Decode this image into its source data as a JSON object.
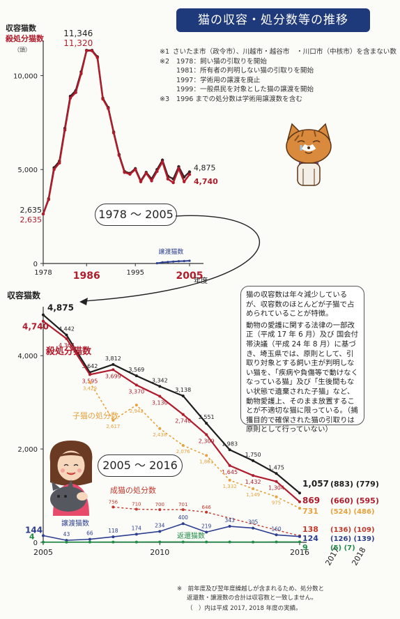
{
  "title": "猫の収容・処分数等の推移",
  "notes": [
    {
      "mark": "※1",
      "text": "さいたま市（政令市）、川越市・越谷市　・川口市（中核市）を含まない数"
    },
    {
      "mark": "※2",
      "text": "1978：飼い猫の引取りを開始"
    },
    {
      "mark": "",
      "text": "1981：所有者の判明しない猫の引取りを開始"
    },
    {
      "mark": "",
      "text": "1997：学術用の譲渡を廃止"
    },
    {
      "mark": "",
      "text": "1999：一般県民を対象とした猫の譲渡を開始"
    },
    {
      "mark": "※3",
      "text": "1996 までの処分数は学術用譲渡数を含む"
    }
  ],
  "explain_box": {
    "p1": "猫の収容数は年々減少しているが、収容数のほとんどが子猫で占められていることが特徴。",
    "p2": "動物の愛護に関する法律の一部改正（平成 17 年 6 月）及び 国会付帯決議（平成 24 年 8 月）に基づき、埼玉県では、原則として、引取り対象とする飼い主が判明しない猫を、「疾病や負傷等で動けなくなっている猫」及び「生後間もない状態で遺棄された子猫」など、動物愛護上、そのまま放置することが不適切な猫に限っている。（捕獲目的で確保された猫の引取りは原則として行っていない）"
  },
  "footnote": {
    "line1": "※　前年度及び翌年度繰越しが含まれるため、処分数と",
    "line2": "返還数・譲渡数の合計は収容数と一致しません。",
    "line3": "（　）内は平成 2017, 2018 年度の実績。"
  },
  "colors": {
    "banner": "#1f3a7a",
    "intake": "#2a2a2a",
    "euthanized": "#b01c2c",
    "kitten": "#e6a23c",
    "adult": "#c0392b",
    "transfer": "#2c3e8f",
    "returned": "#1e8c45"
  },
  "chart_data": [
    {
      "type": "line",
      "range_label": "1978 ～ 2005",
      "ylabel_lines": [
        "収容猫数",
        "殺処分猫数"
      ],
      "yunit": "（頭）",
      "xlabel": "年度",
      "xlim": [
        1978,
        2005
      ],
      "ylim": [
        0,
        11500
      ],
      "yticks": [
        0,
        5000,
        10000
      ],
      "ytick_labels": [
        "0",
        "5,000",
        "10,000"
      ],
      "xticks": [
        1978,
        1986,
        1995,
        2005
      ],
      "highlight_xticks": [
        1986,
        2005
      ],
      "peak_labels": {
        "intake": "11,346",
        "euthanized": "11,320"
      },
      "start_labels": {
        "intake": "2,635",
        "euthanized": "2,635"
      },
      "end_labels": {
        "intake": "4,875",
        "euthanized": "4,740"
      },
      "series": [
        {
          "name": "収容猫数",
          "key": "intake",
          "x": [
            1978,
            1979,
            1980,
            1981,
            1982,
            1983,
            1984,
            1985,
            1986,
            1987,
            1988,
            1989,
            1990,
            1991,
            1992,
            1993,
            1994,
            1995,
            1996,
            1997,
            1998,
            1999,
            2000,
            2001,
            2002,
            2003,
            2004,
            2005
          ],
          "values": [
            2635,
            3450,
            5100,
            5450,
            7200,
            8900,
            9200,
            10200,
            11346,
            11346,
            11000,
            8800,
            8300,
            7000,
            5800,
            4900,
            4800,
            5050,
            4400,
            4850,
            4500,
            5000,
            5500,
            4650,
            4500,
            5150,
            4600,
            4875
          ]
        },
        {
          "name": "殺処分猫数",
          "key": "euthanized",
          "x": [
            1978,
            1979,
            1980,
            1981,
            1982,
            1983,
            1984,
            1985,
            1986,
            1987,
            1988,
            1989,
            1990,
            1991,
            1992,
            1993,
            1994,
            1995,
            1996,
            1997,
            1998,
            1999,
            2000,
            2001,
            2002,
            2003,
            2004,
            2005
          ],
          "values": [
            2635,
            3400,
            5000,
            5350,
            7100,
            8800,
            9100,
            10100,
            11320,
            11320,
            10950,
            8750,
            8250,
            6950,
            5750,
            4850,
            4750,
            5000,
            4350,
            4800,
            4400,
            4900,
            5400,
            4500,
            4300,
            5050,
            4350,
            4740
          ]
        },
        {
          "name": "譲渡猫数",
          "key": "transfer",
          "x": [
            1999,
            2000,
            2001,
            2002,
            2003,
            2004,
            2005
          ],
          "values": [
            15,
            60,
            80,
            100,
            120,
            130,
            144
          ]
        }
      ]
    },
    {
      "type": "line",
      "range_label": "2005 ～ 2016",
      "ylabel": "収容猫数",
      "xlim": [
        2005,
        2016
      ],
      "ylim": [
        0,
        4900
      ],
      "yticks": [
        0,
        2000,
        4000
      ],
      "ytick_labels": [
        "0",
        "2,000",
        "4,000"
      ],
      "xticks": [
        2005,
        2010,
        2016
      ],
      "extra_years": [
        "2017",
        "2018"
      ],
      "x": [
        2005,
        2006,
        2007,
        2008,
        2009,
        2010,
        2011,
        2012,
        2013,
        2014,
        2015,
        2016
      ],
      "series": [
        {
          "name": "収容猫数",
          "key": "intake",
          "values": [
            4875,
            4442,
            3642,
            3812,
            3569,
            3342,
            3138,
            2551,
            1983,
            1750,
            1475,
            1057
          ],
          "labels": [
            "4,875",
            "4,442",
            "3,642",
            "3,812",
            "3,569",
            "3,342",
            "3,138",
            "2,551",
            "1,983",
            "1,750",
            "1,475",
            "1,057"
          ],
          "later": "(883) (779)"
        },
        {
          "name": "殺処分猫数",
          "key": "euthanized",
          "values": [
            4740,
            4364,
            3595,
            3699,
            3370,
            3130,
            2740,
            2309,
            1645,
            1432,
            1304,
            869
          ],
          "labels": [
            "4,740",
            "4,364",
            "3,595",
            "3,699",
            "3,370",
            "3,130",
            "2,740",
            "2,309",
            "1,645",
            "1,432",
            "1,304",
            "869"
          ],
          "later": "(660) (595)"
        },
        {
          "name": "子猫の処分数",
          "key": "kitten",
          "values": [
            null,
            null,
            3429,
            2617,
            2942,
            2438,
            2076,
            1861,
            1332,
            1149,
            975,
            731
          ],
          "labels": [
            "",
            "",
            "3,429",
            "2,617",
            "2,942",
            "2,438",
            "2,076",
            "1,861",
            "1,332",
            "1,149",
            "975",
            "731"
          ],
          "later": "(524) (486)"
        },
        {
          "name": "成猫の処分数",
          "key": "adult",
          "values": [
            null,
            null,
            null,
            756,
            710,
            700,
            701,
            646,
            null,
            null,
            null,
            138
          ],
          "labels": [
            "",
            "",
            "",
            "756",
            "710",
            "700",
            "701",
            "646",
            "",
            "",
            "",
            "138"
          ],
          "later": "(136) (109)"
        },
        {
          "name": "譲渡猫数",
          "key": "transfer",
          "values": [
            144,
            43,
            66,
            118,
            174,
            234,
            400,
            219,
            343,
            305,
            160,
            124
          ],
          "labels": [
            "144",
            "43",
            "66",
            "118",
            "174",
            "234",
            "400",
            "219",
            "343",
            "305",
            "160",
            "124"
          ],
          "later": "(126) (139)"
        },
        {
          "name": "返還猫数",
          "key": "returned",
          "values": [
            4,
            4,
            5,
            6,
            6,
            8,
            8,
            7,
            7,
            6,
            8,
            9
          ],
          "labels": [
            "4",
            "",
            "",
            "",
            "",
            "",
            "",
            "",
            "",
            "",
            "",
            "9"
          ],
          "later": "(5) (7)"
        }
      ]
    }
  ]
}
